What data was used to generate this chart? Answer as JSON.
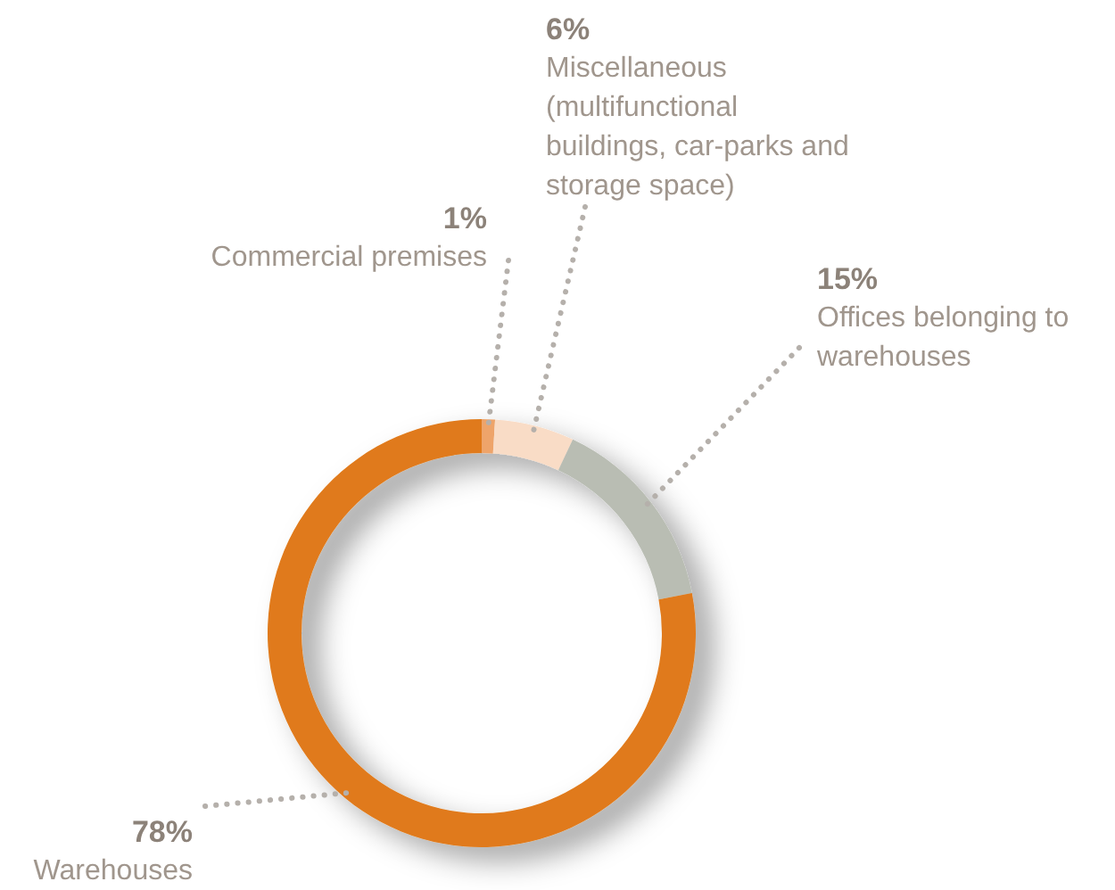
{
  "chart_data": {
    "type": "donut",
    "categories": [
      "Commercial premises",
      "Miscellaneous (multifunctional buildings, car-parks and storage space)",
      "Offices belonging to warehouses",
      "Warehouses"
    ],
    "values": [
      1,
      6,
      15,
      78
    ],
    "value_labels": [
      "1%",
      "6%",
      "15%",
      "78%"
    ],
    "colors": [
      "#eea46a",
      "#f9dcc6",
      "#b9bdb3",
      "#e07a1a"
    ]
  }
}
